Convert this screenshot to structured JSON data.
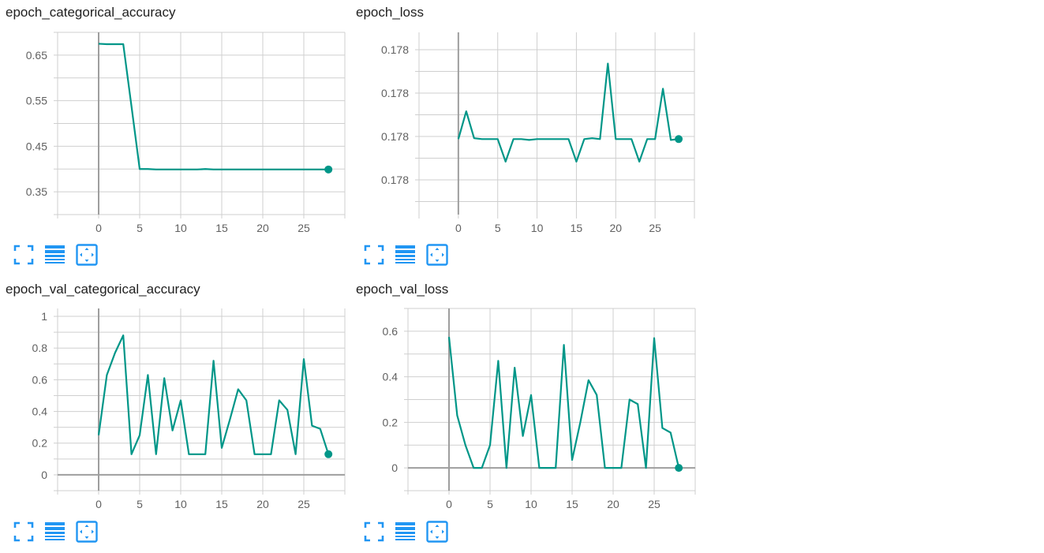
{
  "colors": {
    "series": "#009688",
    "grid": "#cfcfcf",
    "axis": "#9e9e9e",
    "tick_text": "#616161",
    "toolbar_icon": "#2196f3"
  },
  "toolbar": {
    "icons": [
      "fullscreen-icon",
      "toggle-log-scale-icon",
      "fit-domain-icon"
    ]
  },
  "chart_data": [
    {
      "type": "line",
      "title": "epoch_categorical_accuracy",
      "xlim": [
        -5,
        30
      ],
      "ylim": [
        0.3,
        0.7
      ],
      "x_ticks": [
        0,
        5,
        10,
        15,
        20,
        25
      ],
      "y_ticks": [
        0.35,
        0.45,
        0.55,
        0.65
      ],
      "y_tick_labels": [
        "0.35",
        "0.45",
        "0.55",
        "0.65"
      ],
      "y_grid": [
        0.3,
        0.35,
        0.4,
        0.45,
        0.5,
        0.55,
        0.6,
        0.65,
        0.7
      ],
      "grid": true,
      "x": [
        0,
        1,
        2,
        3,
        4,
        5,
        6,
        7,
        8,
        9,
        10,
        11,
        12,
        13,
        14,
        15,
        16,
        17,
        18,
        19,
        20,
        21,
        22,
        23,
        24,
        25,
        26,
        27,
        28
      ],
      "values": [
        0.675,
        0.674,
        0.674,
        0.674,
        0.538,
        0.4,
        0.4,
        0.399,
        0.399,
        0.399,
        0.399,
        0.399,
        0.399,
        0.4,
        0.399,
        0.399,
        0.399,
        0.399,
        0.399,
        0.399,
        0.399,
        0.399,
        0.399,
        0.399,
        0.399,
        0.399,
        0.399,
        0.399,
        0.399
      ]
    },
    {
      "type": "line",
      "title": "epoch_loss",
      "xlim": [
        -5,
        30
      ],
      "ylim": [
        0.17785,
        0.17806
      ],
      "x_ticks": [
        0,
        5,
        10,
        15,
        20,
        25
      ],
      "y_ticks": [
        0.17789,
        0.17794,
        0.17799,
        0.17804
      ],
      "y_tick_labels": [
        "0.178",
        "0.178",
        "0.178",
        "0.178"
      ],
      "y_grid": [
        0.177865,
        0.17789,
        0.177915,
        0.17794,
        0.177965,
        0.17799,
        0.178015,
        0.17804
      ],
      "grid": true,
      "x": [
        0,
        1,
        2,
        3,
        4,
        5,
        6,
        7,
        8,
        9,
        10,
        11,
        12,
        13,
        14,
        15,
        16,
        17,
        18,
        19,
        20,
        21,
        22,
        23,
        24,
        25,
        26,
        27,
        28
      ],
      "values": [
        0.177937,
        0.177969,
        0.177938,
        0.177937,
        0.177937,
        0.177937,
        0.177911,
        0.177937,
        0.177937,
        0.177936,
        0.177937,
        0.177937,
        0.177937,
        0.177937,
        0.177937,
        0.177911,
        0.177937,
        0.177938,
        0.177937,
        0.178024,
        0.177937,
        0.177937,
        0.177937,
        0.177911,
        0.177937,
        0.177937,
        0.177995,
        0.177936,
        0.177937
      ]
    },
    {
      "type": "line",
      "title": "epoch_val_categorical_accuracy",
      "xlim": [
        -5,
        30
      ],
      "ylim": [
        -0.1,
        1.05
      ],
      "x_ticks": [
        0,
        5,
        10,
        15,
        20,
        25
      ],
      "y_ticks": [
        0,
        0.2,
        0.4,
        0.6,
        0.8,
        1
      ],
      "y_tick_labels": [
        "0",
        "0.2",
        "0.4",
        "0.6",
        "0.8",
        "1"
      ],
      "y_grid": [
        -0.1,
        0,
        0.1,
        0.2,
        0.3,
        0.4,
        0.5,
        0.6,
        0.7,
        0.8,
        0.9,
        1
      ],
      "grid": true,
      "x": [
        0,
        1,
        2,
        3,
        4,
        5,
        6,
        7,
        8,
        9,
        10,
        11,
        12,
        13,
        14,
        15,
        16,
        17,
        18,
        19,
        20,
        21,
        22,
        23,
        24,
        25,
        26,
        27,
        28
      ],
      "values": [
        0.25,
        0.63,
        0.77,
        0.88,
        0.13,
        0.25,
        0.63,
        0.13,
        0.61,
        0.28,
        0.47,
        0.13,
        0.13,
        0.13,
        0.72,
        0.17,
        0.35,
        0.54,
        0.47,
        0.13,
        0.13,
        0.13,
        0.47,
        0.41,
        0.13,
        0.73,
        0.31,
        0.29,
        0.13
      ]
    },
    {
      "type": "line",
      "title": "epoch_val_loss",
      "xlim": [
        -5,
        30
      ],
      "ylim": [
        -0.1,
        0.7
      ],
      "x_ticks": [
        0,
        5,
        10,
        15,
        20,
        25
      ],
      "y_ticks": [
        0,
        0.2,
        0.4,
        0.6
      ],
      "y_tick_labels": [
        "0",
        "0.2",
        "0.4",
        "0.6"
      ],
      "y_grid": [
        -0.1,
        0,
        0.1,
        0.2,
        0.3,
        0.4,
        0.5,
        0.6,
        0.7
      ],
      "grid": true,
      "x": [
        0,
        1,
        2,
        3,
        4,
        5,
        6,
        7,
        8,
        9,
        10,
        11,
        12,
        13,
        14,
        15,
        16,
        17,
        18,
        19,
        20,
        21,
        22,
        23,
        24,
        25,
        26,
        27,
        28
      ],
      "values": [
        0.575,
        0.23,
        0.1,
        0,
        0,
        0.1,
        0.47,
        0,
        0.44,
        0.14,
        0.32,
        0,
        0,
        0,
        0.54,
        0.035,
        0.2,
        0.385,
        0.32,
        0,
        0,
        0,
        0.3,
        0.28,
        0,
        0.57,
        0.175,
        0.155,
        0
      ]
    }
  ]
}
